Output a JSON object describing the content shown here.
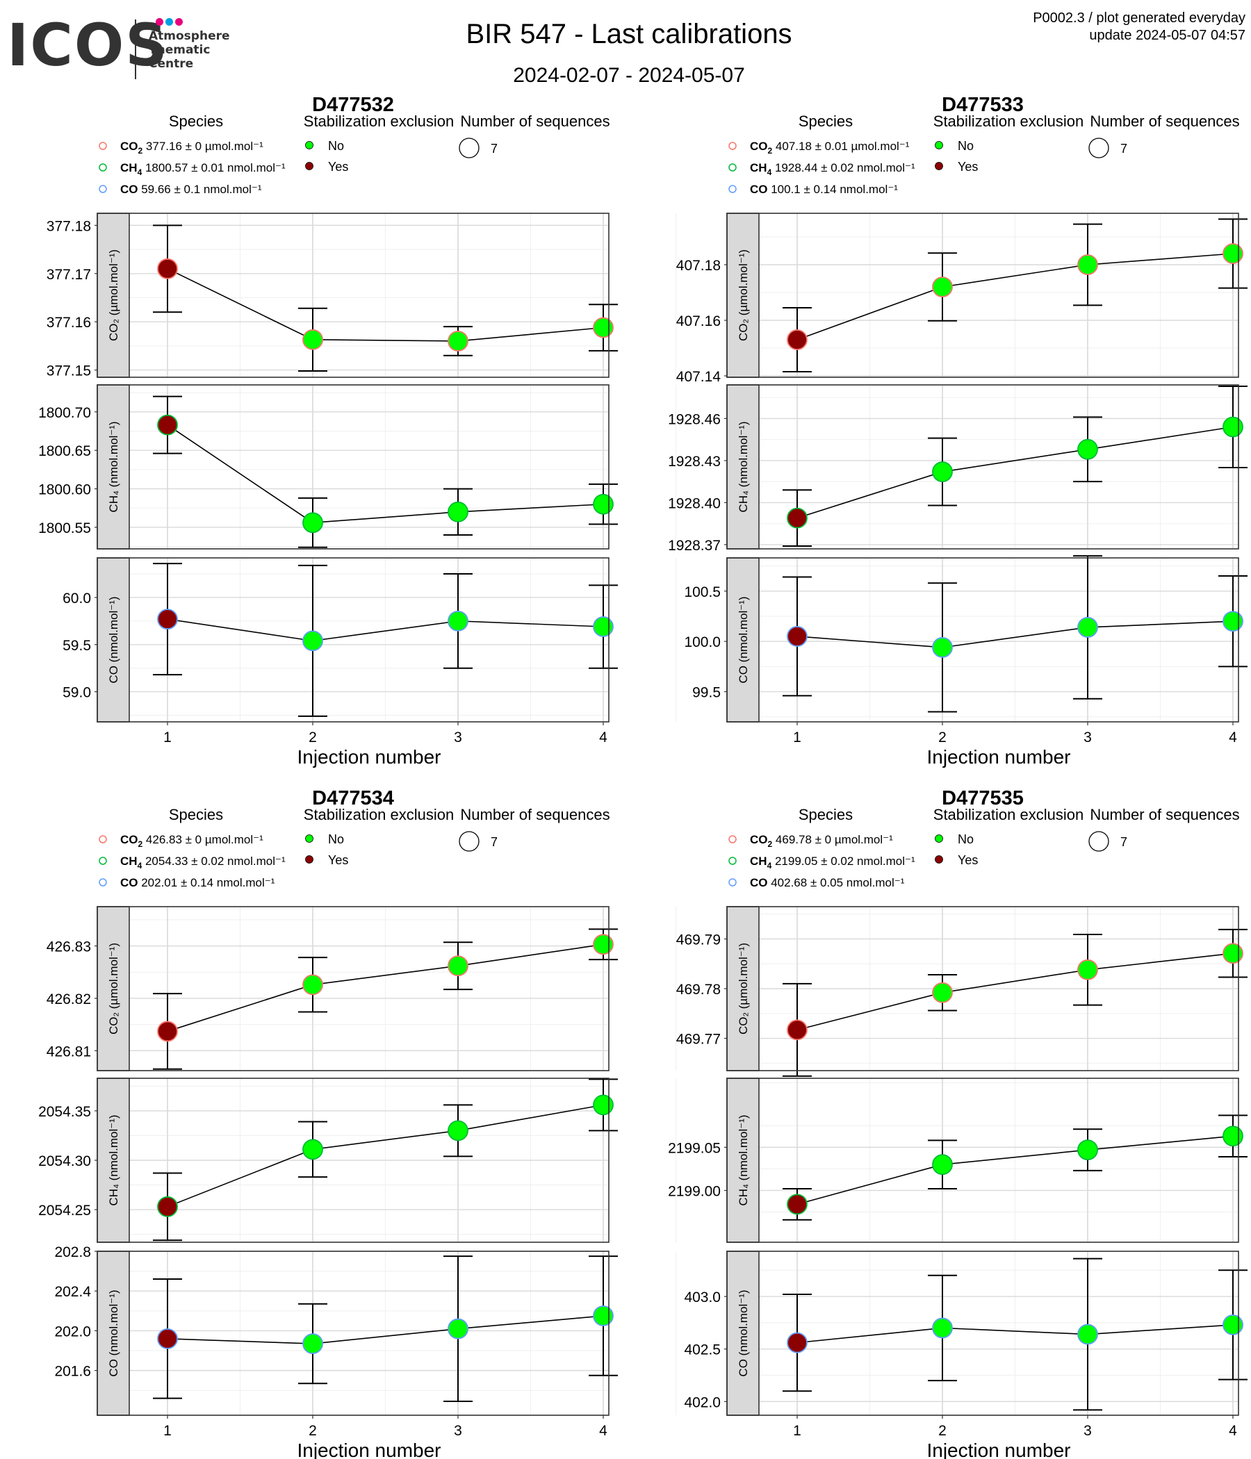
{
  "header": {
    "title": "BIR 547 - Last calibrations",
    "date_range": "2024-02-07 - 2024-05-07",
    "note_line1": "P0002.3 / plot generated everyday",
    "note_line2": "update  2024-05-07 04:57"
  },
  "logo": {
    "wordmark": "ICOS",
    "lines": [
      "Atmosphere",
      "Thematic",
      "Centre"
    ],
    "dot_colors": [
      "#e6007e",
      "#00a0e3",
      "#e6007e"
    ]
  },
  "legend_titles": {
    "species": "Species",
    "stabilization": "Stabilization exclusion",
    "sequences": "Number of sequences"
  },
  "legend_items": {
    "stab_no": "No",
    "stab_yes": "Yes"
  },
  "colors": {
    "co2": "#f8766d",
    "ch4": "#00ba38",
    "co": "#619cff",
    "stab_no": "#00ff00",
    "stab_yes": "#8b0000",
    "panel_border": "#333333",
    "grid_major": "#d9d9d9",
    "grid_minor": "#efefef",
    "strip_bg": "#d9d9d9"
  },
  "chart_data": [
    {
      "type": "scatter",
      "title": "D477532",
      "xlabel": "Injection number",
      "x": [
        1,
        2,
        3,
        4
      ],
      "sequences": "7",
      "stabilization_excluded": [
        true,
        false,
        false,
        false
      ],
      "legend_species": [
        {
          "name": "CO2",
          "value": "377.16 ± 0 µmol.mol⁻¹"
        },
        {
          "name": "CH4",
          "value": "1800.57 ± 0.01 nmol.mol⁻¹"
        },
        {
          "name": "CO",
          "value": "59.66 ± 0.1 nmol.mol⁻¹"
        }
      ],
      "panels": [
        {
          "species": "CO2",
          "ylabel": "CO₂ (µmol.mol⁻¹)",
          "ylim": [
            377.1485,
            377.1825
          ],
          "ticks": [
            377.15,
            377.16,
            377.17,
            377.18
          ],
          "tick_labels": [
            "377.15",
            "377.16",
            "377.17",
            "377.18"
          ],
          "y": [
            377.171,
            377.1563,
            377.156,
            377.1588
          ],
          "err": [
            0.009,
            0.0065,
            0.003,
            0.0048
          ]
        },
        {
          "species": "CH4",
          "ylabel": "CH₄ (nmol.mol⁻¹)",
          "ylim": [
            1800.522,
            1800.735
          ],
          "ticks": [
            1800.55,
            1800.6,
            1800.65,
            1800.7
          ],
          "tick_labels": [
            "1800.55",
            "1800.60",
            "1800.65",
            "1800.70"
          ],
          "y": [
            1800.683,
            1800.556,
            1800.57,
            1800.58
          ],
          "err": [
            0.037,
            0.032,
            0.03,
            0.026
          ]
        },
        {
          "species": "CO",
          "ylabel": "CO (nmol.mol⁻¹)",
          "ylim": [
            58.68,
            60.42
          ],
          "ticks": [
            59.0,
            59.5,
            60.0
          ],
          "tick_labels": [
            "59.0",
            "59.5",
            "60.0"
          ],
          "y": [
            59.77,
            59.54,
            59.75,
            59.69
          ],
          "err": [
            0.59,
            0.8,
            0.5,
            0.44
          ]
        }
      ]
    },
    {
      "type": "scatter",
      "title": "D477533",
      "xlabel": "Injection number",
      "x": [
        1,
        2,
        3,
        4
      ],
      "sequences": "7",
      "stabilization_excluded": [
        true,
        false,
        false,
        false
      ],
      "legend_species": [
        {
          "name": "CO2",
          "value": "407.18 ± 0.01 µmol.mol⁻¹"
        },
        {
          "name": "CH4",
          "value": "1928.44 ± 0.02 nmol.mol⁻¹"
        },
        {
          "name": "CO",
          "value": "100.1 ± 0.14 nmol.mol⁻¹"
        }
      ],
      "panels": [
        {
          "species": "CO2",
          "ylabel": "CO₂ (µmol.mol⁻¹)",
          "ylim": [
            407.1395,
            407.1985
          ],
          "ticks": [
            407.14,
            407.16,
            407.18
          ],
          "tick_labels": [
            "407.14",
            "407.16",
            "407.18"
          ],
          "y": [
            407.153,
            407.172,
            407.18,
            407.184
          ],
          "err": [
            0.0115,
            0.0122,
            0.0146,
            0.0124
          ]
        },
        {
          "species": "CH4",
          "ylabel": "CH₄ (nmol.mol⁻¹)",
          "ylim": [
            1928.367,
            1928.484
          ],
          "ticks": [
            1928.37,
            1928.4,
            1928.43,
            1928.46
          ],
          "tick_labels": [
            "1928.37",
            "1928.40",
            "1928.43",
            "1928.46"
          ],
          "y": [
            1928.389,
            1928.422,
            1928.438,
            1928.454
          ],
          "err": [
            0.02,
            0.024,
            0.023,
            0.029
          ]
        },
        {
          "species": "CO",
          "ylabel": "CO (nmol.mol⁻¹)",
          "ylim": [
            99.2,
            100.83
          ],
          "ticks": [
            99.5,
            100.0,
            100.5
          ],
          "tick_labels": [
            "99.5",
            "100.0",
            "100.5"
          ],
          "y": [
            100.05,
            99.94,
            100.14,
            100.2
          ],
          "err": [
            0.59,
            0.64,
            0.71,
            0.45
          ]
        }
      ]
    },
    {
      "type": "scatter",
      "title": "D477534",
      "xlabel": "Injection number",
      "x": [
        1,
        2,
        3,
        4
      ],
      "sequences": "7",
      "stabilization_excluded": [
        true,
        false,
        false,
        false
      ],
      "legend_species": [
        {
          "name": "CO2",
          "value": "426.83 ± 0 µmol.mol⁻¹"
        },
        {
          "name": "CH4",
          "value": "2054.33 ± 0.02 nmol.mol⁻¹"
        },
        {
          "name": "CO",
          "value": "202.01 ± 0.14 nmol.mol⁻¹"
        }
      ],
      "panels": [
        {
          "species": "CO2",
          "ylabel": "CO₂ (µmol.mol⁻¹)",
          "ylim": [
            426.8062,
            426.8375
          ],
          "ticks": [
            426.81,
            426.82,
            426.83
          ],
          "tick_labels": [
            "426.81",
            "426.82",
            "426.83"
          ],
          "y": [
            426.8137,
            426.8226,
            426.8262,
            426.8303
          ],
          "err": [
            0.0072,
            0.0052,
            0.0045,
            0.0029
          ]
        },
        {
          "species": "CH4",
          "ylabel": "CH₄ (nmol.mol⁻¹)",
          "ylim": [
            2054.217,
            2054.383
          ],
          "ticks": [
            2054.25,
            2054.3,
            2054.35
          ],
          "tick_labels": [
            "2054.25",
            "2054.30",
            "2054.35"
          ],
          "y": [
            2054.253,
            2054.311,
            2054.33,
            2054.356
          ],
          "err": [
            0.034,
            0.028,
            0.026,
            0.026
          ]
        },
        {
          "species": "CO",
          "ylabel": "CO (nmol.mol⁻¹)",
          "ylim": [
            201.15,
            202.8
          ],
          "ticks": [
            201.6,
            202.0,
            202.4,
            202.8
          ],
          "tick_labels": [
            "201.6",
            "202.0",
            "202.4",
            "202.8"
          ],
          "y": [
            201.92,
            201.87,
            202.02,
            202.15
          ],
          "err": [
            0.6,
            0.4,
            0.73,
            0.6
          ]
        }
      ]
    },
    {
      "type": "scatter",
      "title": "D477535",
      "xlabel": "Injection number",
      "x": [
        1,
        2,
        3,
        4
      ],
      "sequences": "7",
      "stabilization_excluded": [
        true,
        false,
        false,
        false
      ],
      "legend_species": [
        {
          "name": "CO2",
          "value": "469.78 ± 0 µmol.mol⁻¹"
        },
        {
          "name": "CH4",
          "value": "2199.05 ± 0.02 nmol.mol⁻¹"
        },
        {
          "name": "CO",
          "value": "402.68 ± 0.05 nmol.mol⁻¹"
        }
      ],
      "panels": [
        {
          "species": "CO2",
          "ylabel": "CO₂ (µmol.mol⁻¹)",
          "ylim": [
            469.7635,
            469.7965
          ],
          "ticks": [
            469.77,
            469.78,
            469.79
          ],
          "tick_labels": [
            "469.77",
            "469.78",
            "469.79"
          ],
          "y": [
            469.7717,
            469.7792,
            469.7838,
            469.7871
          ],
          "err": [
            0.0093,
            0.0036,
            0.0071,
            0.0048
          ]
        },
        {
          "species": "CH4",
          "ylabel": "CH₄ (nmol.mol⁻¹)",
          "ylim": [
            2198.94,
            2199.13
          ],
          "ticks": [
            2199.0,
            2199.05
          ],
          "tick_labels": [
            "2199.00",
            "2199.05"
          ],
          "y": [
            2198.984,
            2199.03,
            2199.047,
            2199.063
          ],
          "err": [
            0.018,
            0.028,
            0.024,
            0.024
          ]
        },
        {
          "species": "CO",
          "ylabel": "CO (nmol.mol⁻¹)",
          "ylim": [
            401.87,
            403.43
          ],
          "ticks": [
            402.0,
            402.5,
            403.0
          ],
          "tick_labels": [
            "402.0",
            "402.5",
            "403.0"
          ],
          "y": [
            402.56,
            402.7,
            402.64,
            402.73
          ],
          "err": [
            0.46,
            0.5,
            0.72,
            0.52
          ]
        }
      ]
    }
  ]
}
